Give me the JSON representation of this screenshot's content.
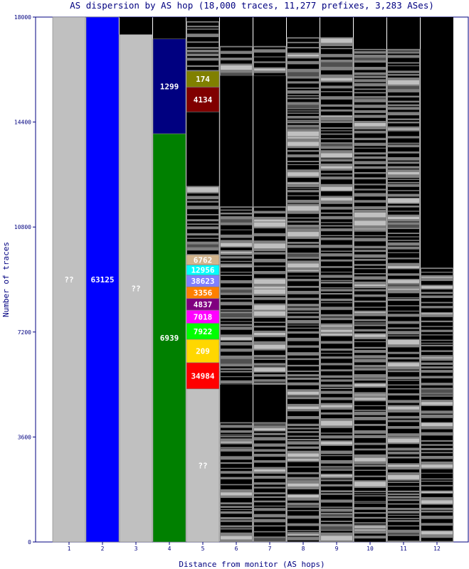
{
  "chart_data": {
    "type": "bar",
    "title": "AS dispersion by AS hop (18,000 traces, 11,277 prefixes, 3,283 ASes)",
    "xlabel": "Distance from monitor (AS hops)",
    "ylabel": "Number of traces",
    "ylim": [
      0,
      18000
    ],
    "yticks": [
      "0",
      "3600",
      "7200",
      "10800",
      "14400",
      "18000"
    ],
    "categories": [
      "1",
      "2",
      "3",
      "4",
      "5",
      "6",
      "7",
      "8",
      "9",
      "10",
      "11",
      "12"
    ],
    "colors": {
      "unknown": "#c0c0c0",
      "other": "#808080",
      "none": "#000000",
      "63125": "#0000ff",
      "1299": "#000080",
      "174": "#808000",
      "4134": "#800000",
      "6939": "#008000",
      "6762": "#d2b48c",
      "12956": "#00ffff",
      "38623": "#8080ff",
      "3356": "#ff8000",
      "4837": "#800080",
      "7018": "#ff00ff",
      "7922": "#00ff00",
      "209": "#ffd700",
      "34984": "#ff0000"
    },
    "hops": [
      {
        "hop": "1",
        "segments": [
          {
            "as": "??",
            "count": 18000,
            "color": "unknown",
            "label": "??"
          }
        ]
      },
      {
        "hop": "2",
        "segments": [
          {
            "as": "63125",
            "count": 18000,
            "color": "63125",
            "label": "63125"
          }
        ]
      },
      {
        "hop": "3",
        "segments": [
          {
            "as": "??",
            "count": 17400,
            "color": "unknown",
            "label": "??"
          }
        ]
      },
      {
        "hop": "4",
        "segments": [
          {
            "as": "6939",
            "count": 14000,
            "color": "6939",
            "label": "6939"
          },
          {
            "as": "1299",
            "count": 3250,
            "color": "1299",
            "label": "1299"
          }
        ]
      },
      {
        "hop": "5",
        "segments": [
          {
            "as": "??",
            "count": 5250,
            "color": "unknown",
            "label": "??"
          },
          {
            "as": "34984",
            "count": 900,
            "color": "34984",
            "label": "34984"
          },
          {
            "as": "209",
            "count": 800,
            "color": "209",
            "label": "209"
          },
          {
            "as": "7922",
            "count": 550,
            "color": "7922",
            "label": "7922"
          },
          {
            "as": "7018",
            "count": 450,
            "color": "7018",
            "label": "7018"
          },
          {
            "as": "4837",
            "count": 400,
            "color": "4837",
            "label": "4837"
          },
          {
            "as": "3356",
            "count": 400,
            "color": "3356",
            "label": "3356"
          },
          {
            "as": "38623",
            "count": 400,
            "color": "38623",
            "label": "38623"
          },
          {
            "as": "12956",
            "count": 350,
            "color": "12956",
            "label": "12956"
          },
          {
            "as": "6762",
            "count": 350,
            "color": "6762",
            "label": "6762"
          },
          {
            "as": "other",
            "count": 2350,
            "color": "other",
            "label": ""
          },
          {
            "as": "none",
            "count": 2550,
            "color": "none",
            "label": ""
          },
          {
            "as": "4134",
            "count": 850,
            "color": "4134",
            "label": "4134"
          },
          {
            "as": "174",
            "count": 550,
            "color": "174",
            "label": "174"
          },
          {
            "as": "other",
            "count": 1700,
            "color": "other",
            "label": ""
          }
        ]
      },
      {
        "hop": "6",
        "segments": [
          {
            "as": "other",
            "count": 4100,
            "color": "other",
            "label": ""
          },
          {
            "as": "none",
            "count": 1300,
            "color": "none",
            "label": ""
          },
          {
            "as": "other",
            "count": 6100,
            "color": "other",
            "label": ""
          },
          {
            "as": "none",
            "count": 4500,
            "color": "none",
            "label": ""
          },
          {
            "as": "other",
            "count": 1000,
            "color": "other",
            "label": ""
          }
        ]
      },
      {
        "hop": "7",
        "segments": [
          {
            "as": "other",
            "count": 4100,
            "color": "other",
            "label": ""
          },
          {
            "as": "none",
            "count": 1300,
            "color": "none",
            "label": ""
          },
          {
            "as": "other",
            "count": 6100,
            "color": "other",
            "label": ""
          },
          {
            "as": "none",
            "count": 4500,
            "color": "none",
            "label": ""
          },
          {
            "as": "other",
            "count": 1000,
            "color": "other",
            "label": ""
          }
        ]
      },
      {
        "hop": "8",
        "segments": [
          {
            "as": "other",
            "count": 17300,
            "color": "other",
            "label": ""
          }
        ]
      },
      {
        "hop": "9",
        "segments": [
          {
            "as": "other",
            "count": 17300,
            "color": "other",
            "label": ""
          }
        ]
      },
      {
        "hop": "10",
        "segments": [
          {
            "as": "other",
            "count": 16900,
            "color": "other",
            "label": ""
          }
        ]
      },
      {
        "hop": "11",
        "segments": [
          {
            "as": "other",
            "count": 16900,
            "color": "other",
            "label": ""
          }
        ]
      },
      {
        "hop": "12",
        "segments": [
          {
            "as": "other",
            "count": 9400,
            "color": "other",
            "label": ""
          }
        ]
      }
    ],
    "grid": false,
    "legend": "none"
  }
}
